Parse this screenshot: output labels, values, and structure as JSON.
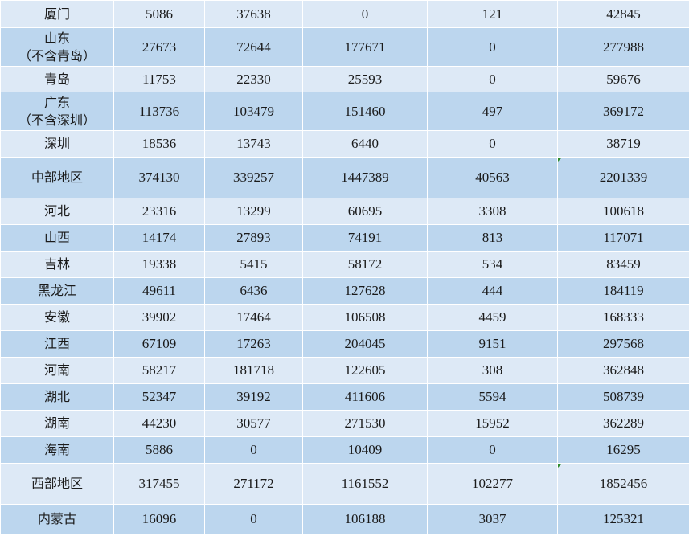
{
  "table": {
    "rows": [
      {
        "name": [
          "厦门"
        ],
        "values": [
          "5086",
          "37638",
          "0",
          "121",
          "42845"
        ],
        "marker": false
      },
      {
        "name": [
          "山东",
          "（不含青岛）"
        ],
        "values": [
          "27673",
          "72644",
          "177671",
          "0",
          "277988"
        ],
        "marker": false
      },
      {
        "name": [
          "青岛"
        ],
        "values": [
          "11753",
          "22330",
          "25593",
          "0",
          "59676"
        ],
        "marker": false
      },
      {
        "name": [
          "广东",
          "（不含深圳）"
        ],
        "values": [
          "113736",
          "103479",
          "151460",
          "497",
          "369172"
        ],
        "marker": false
      },
      {
        "name": [
          "深圳"
        ],
        "values": [
          "18536",
          "13743",
          "6440",
          "0",
          "38719"
        ],
        "marker": false
      },
      {
        "name": [
          "中部地区"
        ],
        "values": [
          "374130",
          "339257",
          "1447389",
          "40563",
          "2201339"
        ],
        "marker": true
      },
      {
        "name": [
          "河北"
        ],
        "values": [
          "23316",
          "13299",
          "60695",
          "3308",
          "100618"
        ],
        "marker": false
      },
      {
        "name": [
          "山西"
        ],
        "values": [
          "14174",
          "27893",
          "74191",
          "813",
          "117071"
        ],
        "marker": false
      },
      {
        "name": [
          "吉林"
        ],
        "values": [
          "19338",
          "5415",
          "58172",
          "534",
          "83459"
        ],
        "marker": false
      },
      {
        "name": [
          "黑龙江"
        ],
        "values": [
          "49611",
          "6436",
          "127628",
          "444",
          "184119"
        ],
        "marker": false
      },
      {
        "name": [
          "安徽"
        ],
        "values": [
          "39902",
          "17464",
          "106508",
          "4459",
          "168333"
        ],
        "marker": false
      },
      {
        "name": [
          "江西"
        ],
        "values": [
          "67109",
          "17263",
          "204045",
          "9151",
          "297568"
        ],
        "marker": false
      },
      {
        "name": [
          "河南"
        ],
        "values": [
          "58217",
          "181718",
          "122605",
          "308",
          "362848"
        ],
        "marker": false
      },
      {
        "name": [
          "湖北"
        ],
        "values": [
          "52347",
          "39192",
          "411606",
          "5594",
          "508739"
        ],
        "marker": false
      },
      {
        "name": [
          "湖南"
        ],
        "values": [
          "44230",
          "30577",
          "271530",
          "15952",
          "362289"
        ],
        "marker": false
      },
      {
        "name": [
          "海南"
        ],
        "values": [
          "5886",
          "0",
          "10409",
          "0",
          "16295"
        ],
        "marker": false
      },
      {
        "name": [
          "西部地区"
        ],
        "values": [
          "317455",
          "271172",
          "1161552",
          "102277",
          "1852456"
        ],
        "marker": true
      },
      {
        "name": [
          "内蒙古"
        ],
        "values": [
          "16096",
          "0",
          "106188",
          "3037",
          "125321"
        ],
        "marker": false
      }
    ]
  },
  "colors": {
    "row_light": "#dde9f6",
    "row_dark": "#bcd6ee",
    "marker": "#2e8b2e"
  }
}
